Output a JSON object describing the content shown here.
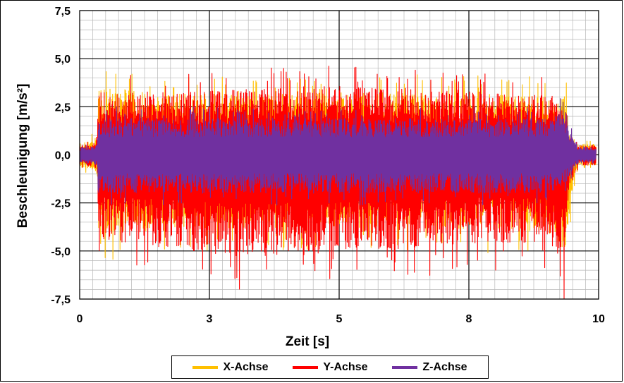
{
  "chart_data": {
    "type": "line",
    "title": "",
    "xlabel": "Zeit [s]",
    "ylabel": "Beschleunigung [m/s²]",
    "xlim": [
      0,
      10
    ],
    "ylim": [
      -7.5,
      7.5
    ],
    "x_tick_labels": [
      "0",
      "3",
      "5",
      "8",
      "10"
    ],
    "x_tick_positions": [
      0,
      2.5,
      5,
      7.5,
      10
    ],
    "y_tick_labels": [
      "7,5",
      "5,0",
      "2,5",
      "0,0",
      "-2,5",
      "-5,0",
      "-7,5"
    ],
    "y_tick_positions": [
      7.5,
      5,
      2.5,
      0,
      -2.5,
      -5,
      -7.5
    ],
    "grid": true,
    "legend_position": "bottom",
    "series": [
      {
        "name": "X-Achse",
        "color": "#FFC000",
        "profile": [
          [
            0,
            0.7
          ],
          [
            0.3,
            0.9
          ],
          [
            0.34,
            1.2
          ],
          [
            0.36,
            3.6
          ],
          [
            0.5,
            3.7
          ],
          [
            1.5,
            3.4
          ],
          [
            3.0,
            3.3
          ],
          [
            5.0,
            3.4
          ],
          [
            7.0,
            3.4
          ],
          [
            9.2,
            3.2
          ],
          [
            9.38,
            3.3
          ],
          [
            9.42,
            1.4
          ],
          [
            9.6,
            0.6
          ],
          [
            9.95,
            0.6
          ]
        ],
        "neg_profile": [
          [
            0,
            0.7
          ],
          [
            0.3,
            0.9
          ],
          [
            0.34,
            1.2
          ],
          [
            0.36,
            4.6
          ],
          [
            0.5,
            4.4
          ],
          [
            1.5,
            4.1
          ],
          [
            3.0,
            4.0
          ],
          [
            5.0,
            4.0
          ],
          [
            7.0,
            4.0
          ],
          [
            9.0,
            4.2
          ],
          [
            9.35,
            6.0
          ],
          [
            9.42,
            4.5
          ],
          [
            9.52,
            2.5
          ],
          [
            9.6,
            0.6
          ],
          [
            9.95,
            0.6
          ]
        ],
        "seed": 17
      },
      {
        "name": "Y-Achse",
        "color": "#FF0000",
        "profile": [
          [
            0,
            0.5
          ],
          [
            0.3,
            0.7
          ],
          [
            0.34,
            1.0
          ],
          [
            0.36,
            3.4
          ],
          [
            0.5,
            3.5
          ],
          [
            2.0,
            3.4
          ],
          [
            4.5,
            3.8
          ],
          [
            7.0,
            3.6
          ],
          [
            9.2,
            3.2
          ],
          [
            9.38,
            2.3
          ],
          [
            9.42,
            1.0
          ],
          [
            9.6,
            0.5
          ],
          [
            9.95,
            0.5
          ]
        ],
        "neg_profile": [
          [
            0,
            0.5
          ],
          [
            0.3,
            0.7
          ],
          [
            0.34,
            1.0
          ],
          [
            0.36,
            4.4
          ],
          [
            0.5,
            4.7
          ],
          [
            2.0,
            5.2
          ],
          [
            3.0,
            5.6
          ],
          [
            5.0,
            5.4
          ],
          [
            7.0,
            5.0
          ],
          [
            9.0,
            4.8
          ],
          [
            9.35,
            6.2
          ],
          [
            9.42,
            2.0
          ],
          [
            9.6,
            0.6
          ],
          [
            9.95,
            0.6
          ]
        ],
        "seed": 41
      },
      {
        "name": "Z-Achse",
        "color": "#7030A0",
        "profile": [
          [
            0,
            0.4
          ],
          [
            0.3,
            0.5
          ],
          [
            0.34,
            0.8
          ],
          [
            0.36,
            2.0
          ],
          [
            1.0,
            2.0
          ],
          [
            5.0,
            2.0
          ],
          [
            9.0,
            2.0
          ],
          [
            9.3,
            2.6
          ],
          [
            9.42,
            1.5
          ],
          [
            9.6,
            0.5
          ],
          [
            9.95,
            0.4
          ]
        ],
        "neg_profile": [
          [
            0,
            0.4
          ],
          [
            0.3,
            0.5
          ],
          [
            0.34,
            0.8
          ],
          [
            0.36,
            2.2
          ],
          [
            1.0,
            2.1
          ],
          [
            5.0,
            2.1
          ],
          [
            9.0,
            2.1
          ],
          [
            9.3,
            2.0
          ],
          [
            9.42,
            1.2
          ],
          [
            9.6,
            0.5
          ],
          [
            9.95,
            0.4
          ]
        ],
        "seed": 73
      }
    ]
  }
}
